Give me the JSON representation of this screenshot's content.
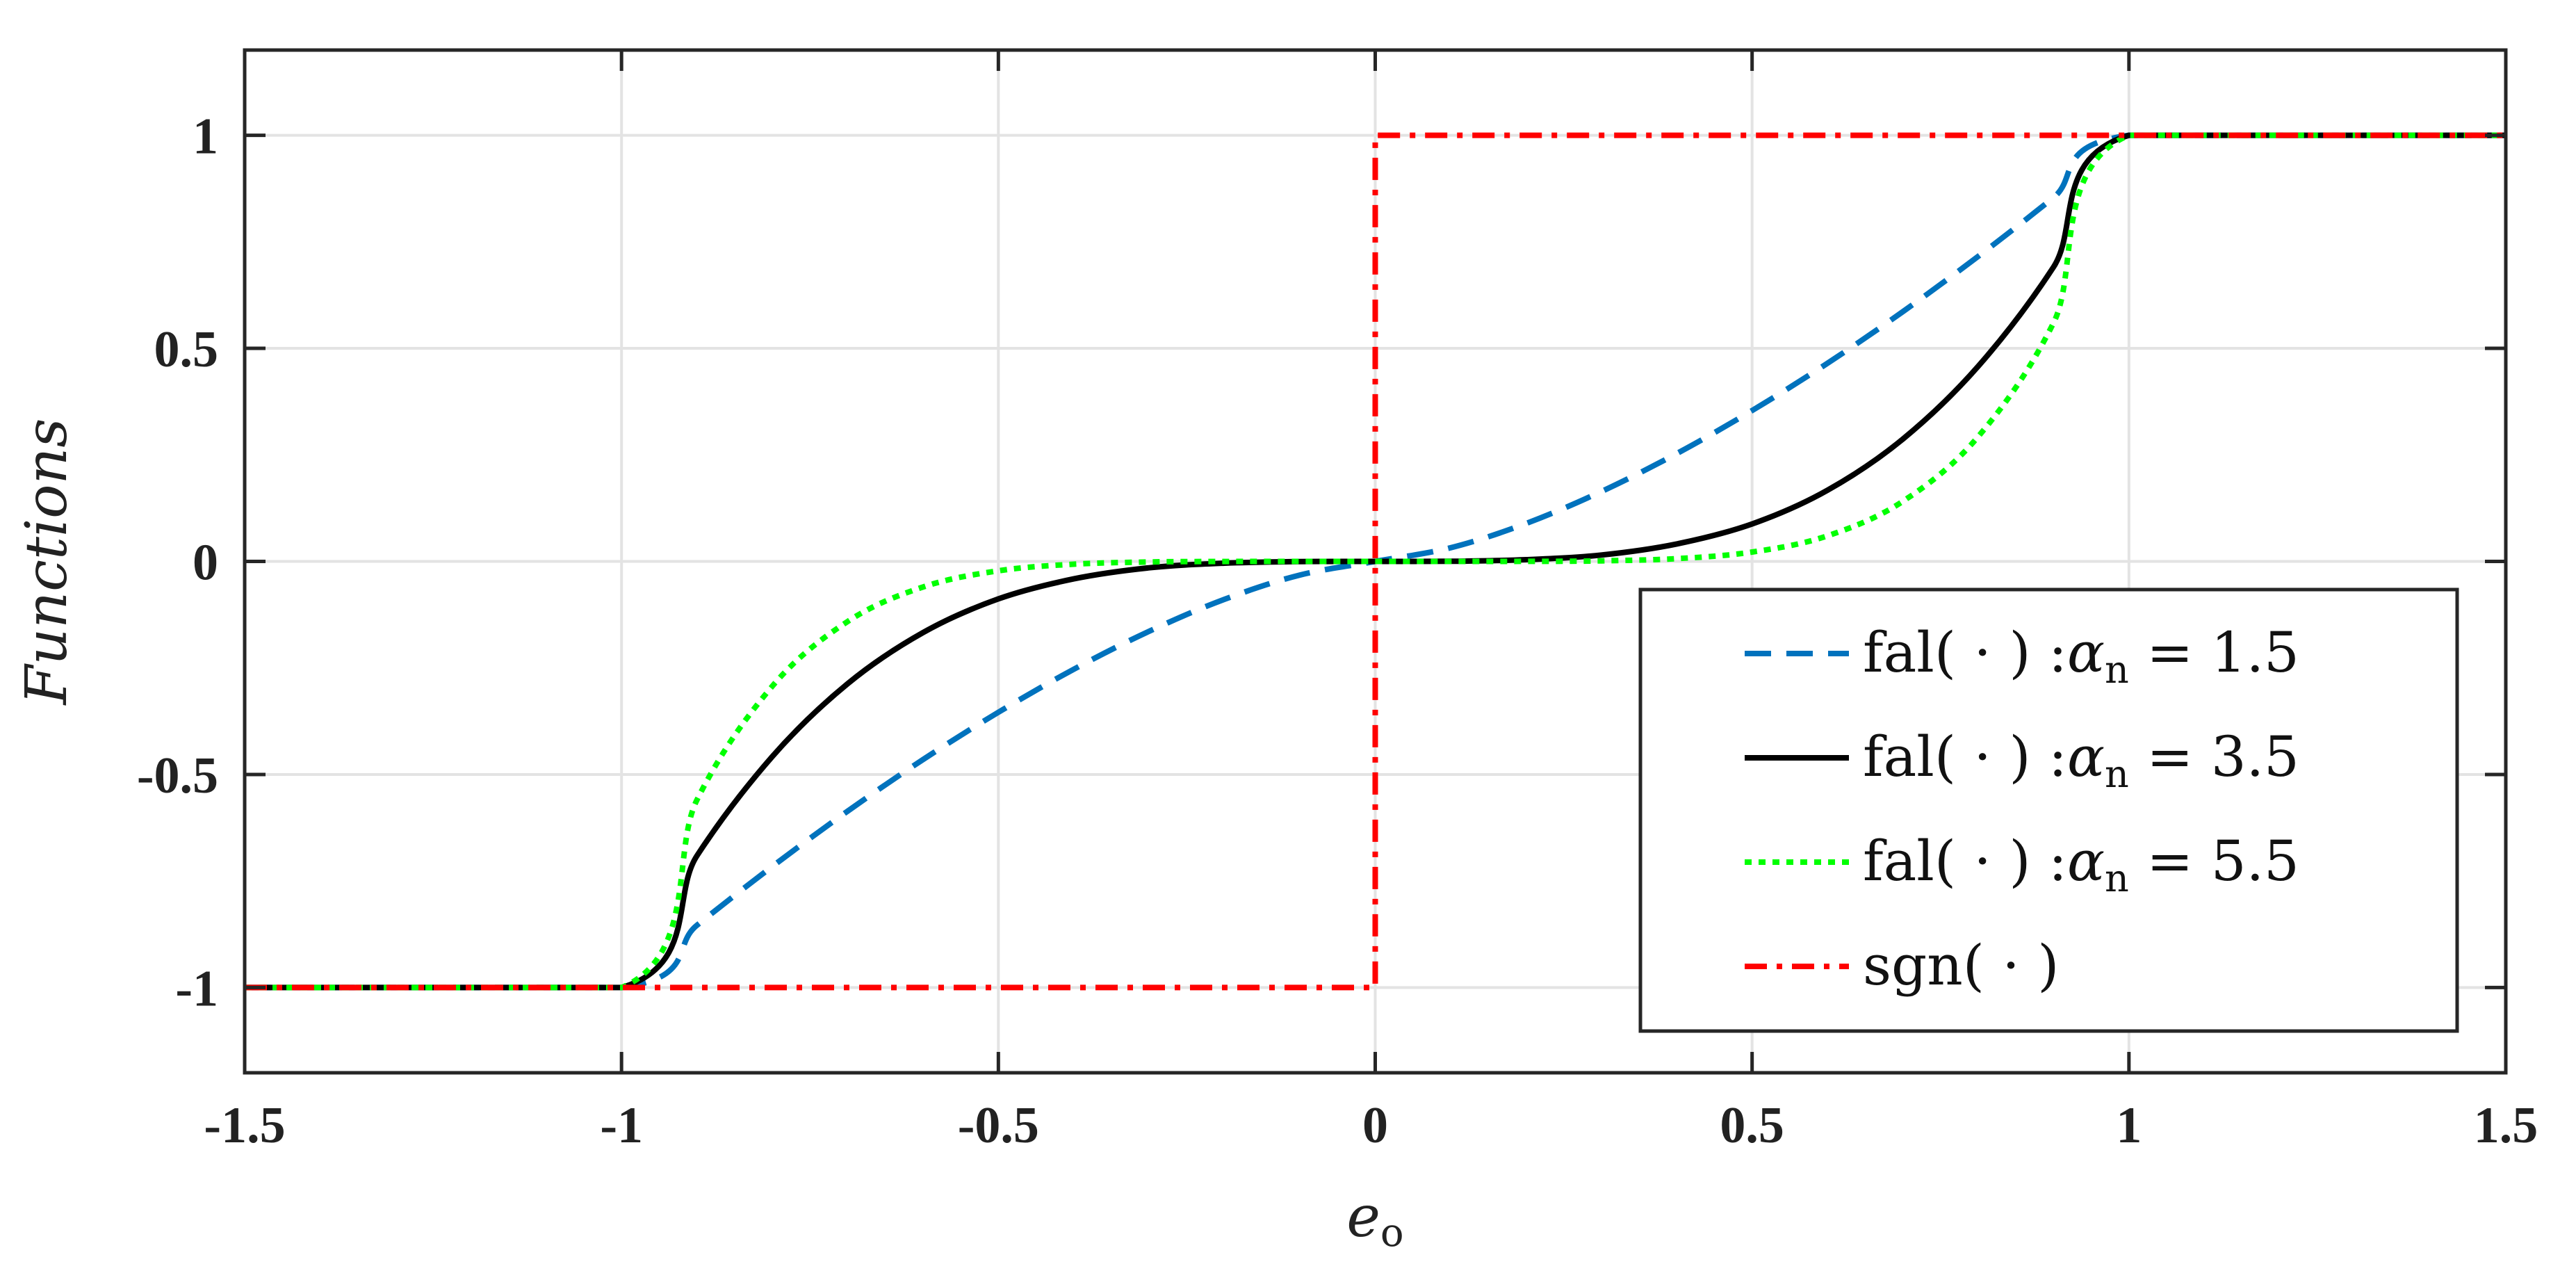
{
  "chart_data": {
    "type": "line",
    "xlabel": "e",
    "xlabel_sub": "o",
    "ylabel": "Functions",
    "xlim": [
      -1.5,
      1.5
    ],
    "ylim": [
      -1.2,
      1.2
    ],
    "grid": true,
    "legend_position": "bottom-right",
    "x_ticks": [
      -1.5,
      -1,
      -0.5,
      0,
      0.5,
      1,
      1.5
    ],
    "x_tick_labels": [
      "-1.5",
      "-1",
      "-0.5",
      "0",
      "0.5",
      "1",
      "1.5"
    ],
    "y_ticks": [
      -1,
      -0.5,
      0,
      0.5,
      1
    ],
    "y_tick_labels": [
      "-1",
      "-0.5",
      "0",
      "0.5",
      "1"
    ],
    "series": [
      {
        "name": "fal( · ) :αn = 1.5",
        "legend_prefix": "fal( · ) :",
        "legend_symbol": "α",
        "legend_sub": "n",
        "legend_value": " = 1.5",
        "color": "#0072BD",
        "dash": "dashed",
        "x": [
          -1.5,
          -1.0,
          -0.9,
          -0.8,
          -0.7,
          -0.6,
          -0.5,
          -0.4,
          -0.3,
          -0.2,
          -0.1,
          0.0,
          0.1,
          0.2,
          0.3,
          0.4,
          0.5,
          0.6,
          0.7,
          0.8,
          0.9,
          1.0,
          1.5
        ],
        "y": [
          -1.0,
          -1.0,
          -0.854,
          -0.716,
          -0.586,
          -0.465,
          -0.354,
          -0.253,
          -0.164,
          -0.089,
          -0.032,
          0.0,
          0.032,
          0.089,
          0.164,
          0.253,
          0.354,
          0.465,
          0.586,
          0.716,
          0.854,
          1.0,
          1.0
        ]
      },
      {
        "name": "fal( · ) :αn = 3.5",
        "legend_prefix": "fal( · ) :",
        "legend_symbol": "α",
        "legend_sub": "n",
        "legend_value": " = 3.5",
        "color": "#000000",
        "dash": "solid",
        "x": [
          -1.5,
          -1.0,
          -0.9,
          -0.8,
          -0.7,
          -0.6,
          -0.5,
          -0.4,
          -0.3,
          -0.2,
          -0.1,
          0.0,
          0.1,
          0.2,
          0.3,
          0.4,
          0.5,
          0.6,
          0.7,
          0.8,
          0.9,
          1.0,
          1.5
        ],
        "y": [
          -1.0,
          -1.0,
          -0.691,
          -0.458,
          -0.287,
          -0.167,
          -0.088,
          -0.041,
          -0.015,
          -0.004,
          -0.0003,
          0.0,
          0.0003,
          0.004,
          0.015,
          0.041,
          0.088,
          0.167,
          0.287,
          0.458,
          0.691,
          1.0,
          1.0
        ]
      },
      {
        "name": "fal( · ) :αn = 5.5",
        "legend_prefix": "fal( · ) :",
        "legend_symbol": "α",
        "legend_sub": "n",
        "legend_value": " = 5.5",
        "color": "#00FF00",
        "dash": "dotted",
        "x": [
          -1.5,
          -1.0,
          -0.9,
          -0.8,
          -0.7,
          -0.6,
          -0.5,
          -0.4,
          -0.3,
          -0.2,
          -0.1,
          0.0,
          0.1,
          0.2,
          0.3,
          0.4,
          0.5,
          0.6,
          0.7,
          0.8,
          0.9,
          1.0,
          1.5
        ],
        "y": [
          -1.0,
          -1.0,
          -0.56,
          -0.293,
          -0.141,
          -0.06,
          -0.022,
          -0.0065,
          -0.0013,
          -0.0001,
          0.0,
          0.0,
          0.0,
          0.0001,
          0.0013,
          0.0065,
          0.022,
          0.06,
          0.141,
          0.293,
          0.56,
          1.0,
          1.0
        ]
      },
      {
        "name": "sgn( · )",
        "legend_prefix": "sgn( · )",
        "legend_symbol": "",
        "legend_sub": "",
        "legend_value": "",
        "color": "#FF0000",
        "dash": "dashdot",
        "x": [
          -1.5,
          0.0,
          0.0,
          1.5
        ],
        "y": [
          -1.0,
          -1.0,
          1.0,
          1.0
        ]
      }
    ]
  }
}
